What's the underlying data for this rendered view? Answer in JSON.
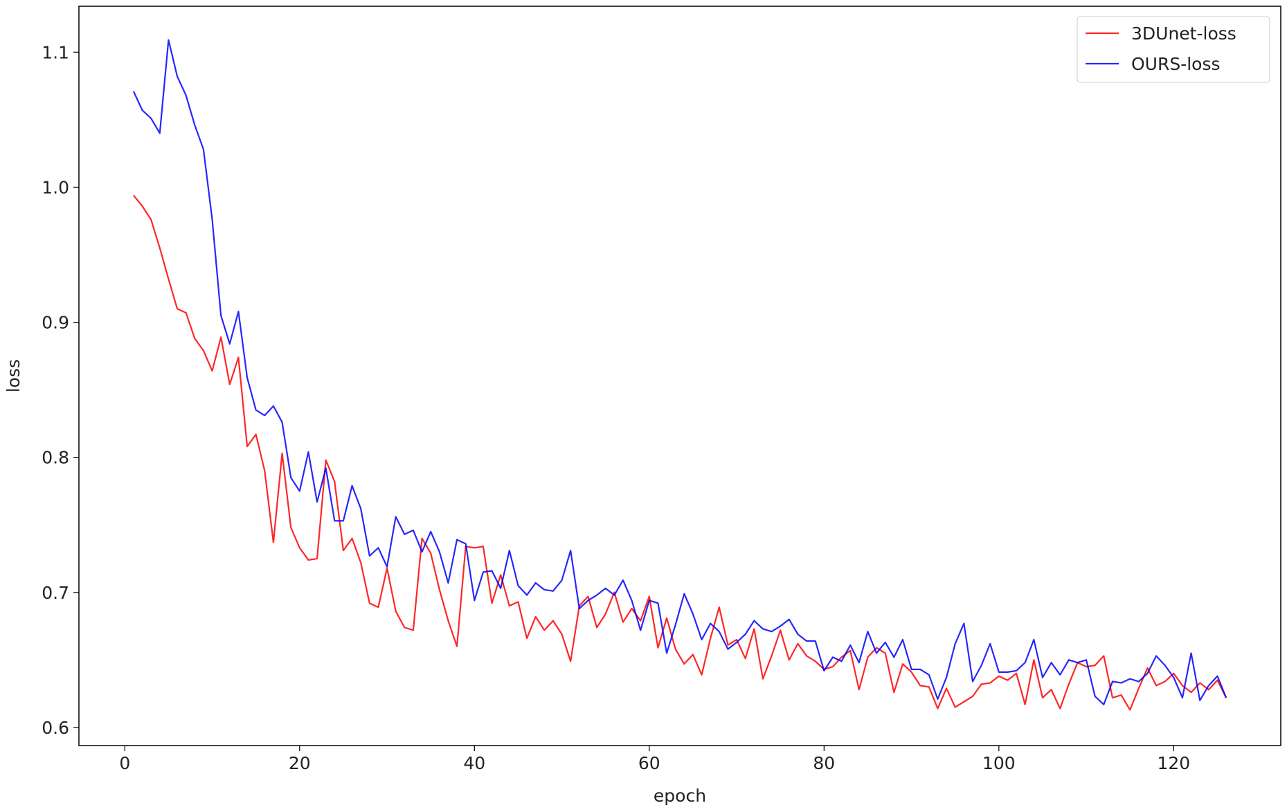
{
  "chart_data": {
    "type": "line",
    "xlabel": "epoch",
    "ylabel": "loss",
    "x": [
      1,
      2,
      3,
      4,
      5,
      6,
      7,
      8,
      9,
      10,
      11,
      12,
      13,
      14,
      15,
      16,
      17,
      18,
      19,
      20,
      21,
      22,
      23,
      24,
      25,
      26,
      27,
      28,
      29,
      30,
      31,
      32,
      33,
      34,
      35,
      36,
      37,
      38,
      39,
      40,
      41,
      42,
      43,
      44,
      45,
      46,
      47,
      48,
      49,
      50,
      51,
      52,
      53,
      54,
      55,
      56,
      57,
      58,
      59,
      60,
      61,
      62,
      63,
      64,
      65,
      66,
      67,
      68,
      69,
      70,
      71,
      72,
      73,
      74,
      75,
      76,
      77,
      78,
      79,
      80,
      81,
      82,
      83,
      84,
      85,
      86,
      87,
      88,
      89,
      90,
      91,
      92,
      93,
      94,
      95,
      96,
      97,
      98,
      99,
      100,
      101,
      102,
      103,
      104,
      105,
      106,
      107,
      108,
      109,
      110,
      111,
      112,
      113,
      114,
      115,
      116,
      117,
      118,
      119,
      120,
      121,
      122,
      123,
      124,
      125,
      126
    ],
    "series": [
      {
        "name": "3DUnet-loss",
        "color": "#ff0000",
        "values": [
          0.994,
          0.986,
          0.976,
          0.955,
          0.932,
          0.91,
          0.907,
          0.888,
          0.879,
          0.864,
          0.889,
          0.854,
          0.874,
          0.808,
          0.817,
          0.79,
          0.737,
          0.803,
          0.748,
          0.733,
          0.724,
          0.725,
          0.798,
          0.782,
          0.731,
          0.74,
          0.722,
          0.692,
          0.689,
          0.718,
          0.686,
          0.674,
          0.672,
          0.74,
          0.729,
          0.702,
          0.679,
          0.66,
          0.734,
          0.733,
          0.734,
          0.692,
          0.713,
          0.69,
          0.693,
          0.666,
          0.682,
          0.672,
          0.679,
          0.669,
          0.649,
          0.69,
          0.697,
          0.674,
          0.684,
          0.7,
          0.678,
          0.688,
          0.679,
          0.697,
          0.659,
          0.681,
          0.658,
          0.647,
          0.654,
          0.639,
          0.666,
          0.689,
          0.661,
          0.665,
          0.651,
          0.673,
          0.636,
          0.653,
          0.672,
          0.65,
          0.662,
          0.653,
          0.649,
          0.643,
          0.645,
          0.652,
          0.657,
          0.628,
          0.652,
          0.659,
          0.655,
          0.626,
          0.647,
          0.641,
          0.631,
          0.63,
          0.614,
          0.629,
          0.615,
          0.619,
          0.623,
          0.632,
          0.633,
          0.638,
          0.635,
          0.64,
          0.617,
          0.65,
          0.622,
          0.628,
          0.614,
          0.632,
          0.648,
          0.645,
          0.646,
          0.653,
          0.622,
          0.624,
          0.613,
          0.629,
          0.644,
          0.631,
          0.634,
          0.64,
          0.631,
          0.626,
          0.633,
          0.628,
          0.635,
          0.622
        ]
      },
      {
        "name": "OURS-loss",
        "color": "#0000ff",
        "values": [
          1.071,
          1.057,
          1.051,
          1.04,
          1.109,
          1.082,
          1.068,
          1.046,
          1.028,
          0.976,
          0.905,
          0.884,
          0.908,
          0.859,
          0.835,
          0.831,
          0.838,
          0.826,
          0.785,
          0.775,
          0.804,
          0.767,
          0.792,
          0.753,
          0.753,
          0.779,
          0.762,
          0.727,
          0.733,
          0.719,
          0.756,
          0.743,
          0.746,
          0.73,
          0.745,
          0.73,
          0.707,
          0.739,
          0.736,
          0.694,
          0.715,
          0.716,
          0.703,
          0.731,
          0.705,
          0.698,
          0.707,
          0.702,
          0.701,
          0.709,
          0.731,
          0.688,
          0.694,
          0.698,
          0.703,
          0.698,
          0.709,
          0.694,
          0.672,
          0.694,
          0.692,
          0.655,
          0.676,
          0.699,
          0.684,
          0.665,
          0.677,
          0.671,
          0.658,
          0.663,
          0.669,
          0.679,
          0.673,
          0.671,
          0.675,
          0.68,
          0.669,
          0.664,
          0.664,
          0.642,
          0.652,
          0.649,
          0.661,
          0.648,
          0.671,
          0.655,
          0.663,
          0.652,
          0.665,
          0.643,
          0.643,
          0.639,
          0.621,
          0.637,
          0.662,
          0.677,
          0.634,
          0.646,
          0.662,
          0.641,
          0.641,
          0.642,
          0.648,
          0.665,
          0.637,
          0.648,
          0.639,
          0.65,
          0.648,
          0.65,
          0.623,
          0.617,
          0.634,
          0.633,
          0.636,
          0.634,
          0.64,
          0.653,
          0.646,
          0.637,
          0.622,
          0.655,
          0.62,
          0.631,
          0.638,
          0.622
        ]
      }
    ],
    "xlim": [
      -5.25,
      132.25
    ],
    "xticks": [
      0,
      20,
      40,
      60,
      80,
      100,
      120
    ],
    "ylim": [
      0.5866,
      1.134
    ],
    "yticks": [
      0.6,
      0.7,
      0.8,
      0.9,
      {
        "value": 1,
        "label": "1.0"
      },
      1.1
    ],
    "grid": false,
    "legend": "upper right"
  }
}
